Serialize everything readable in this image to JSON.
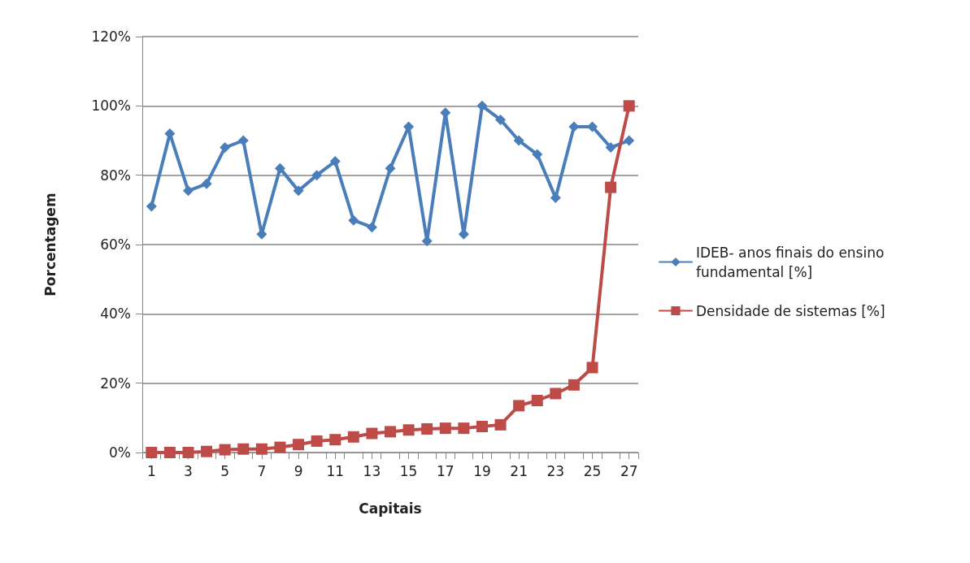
{
  "chart_data": {
    "type": "line",
    "xlabel": "Capitais",
    "ylabel": "Porcentagem",
    "x": [
      1,
      2,
      3,
      4,
      5,
      6,
      7,
      8,
      9,
      10,
      11,
      12,
      13,
      14,
      15,
      16,
      17,
      18,
      19,
      20,
      21,
      22,
      23,
      24,
      25,
      26,
      27
    ],
    "xlim": [
      0.5,
      27.5
    ],
    "xticks": [
      1,
      3,
      5,
      7,
      9,
      11,
      13,
      15,
      17,
      19,
      21,
      23,
      25,
      27,
      {
        "value": 0.5,
        "label": null
      },
      {
        "value": 1.5,
        "label": null
      },
      {
        "value": 2.5,
        "label": null
      },
      {
        "value": 3.5,
        "label": null
      },
      {
        "value": 4.5,
        "label": null
      },
      {
        "value": 5.5,
        "label": null
      },
      {
        "value": 6.5,
        "label": null
      },
      {
        "value": 7.5,
        "label": null
      },
      {
        "value": 8.5,
        "label": null
      },
      {
        "value": 9.5,
        "label": null
      },
      {
        "value": 10.5,
        "label": null
      },
      {
        "value": 11.5,
        "label": null
      },
      {
        "value": 12.5,
        "label": null
      },
      {
        "value": 13.5,
        "label": null
      },
      {
        "value": 14.5,
        "label": null
      },
      {
        "value": 15.5,
        "label": null
      },
      {
        "value": 16.5,
        "label": null
      },
      {
        "value": 17.5,
        "label": null
      },
      {
        "value": 18.5,
        "label": null
      },
      {
        "value": 19.5,
        "label": null
      },
      {
        "value": 20.5,
        "label": null
      },
      {
        "value": 21.5,
        "label": null
      },
      {
        "value": 22.5,
        "label": null
      },
      {
        "value": 23.5,
        "label": null
      },
      {
        "value": 24.5,
        "label": null
      },
      {
        "value": 25.5,
        "label": null
      },
      {
        "value": 26.5,
        "label": null
      },
      {
        "value": 27.5,
        "label": null
      }
    ],
    "series": [
      {
        "name": "IDEB- anos finais do ensino fundamental [%]",
        "color": "#4a7ebb",
        "marker": "diamond",
        "values": [
          71,
          92,
          75.5,
          77.5,
          88,
          90,
          63,
          82,
          75.5,
          80,
          84,
          67,
          65,
          82,
          94,
          61,
          98,
          63,
          100,
          96,
          90,
          86,
          73.5,
          94,
          94,
          88,
          90
        ]
      },
      {
        "name": "Densidade de sistemas [%]",
        "color": "#be4b48",
        "marker": "square",
        "values": [
          0,
          0,
          0,
          0.3,
          0.8,
          1,
          1,
          1.5,
          2.3,
          3.3,
          3.7,
          4.5,
          5.5,
          6,
          6.5,
          6.8,
          7,
          7,
          7.5,
          8,
          13.5,
          15,
          17,
          19.5,
          24.5,
          76.5,
          100
        ]
      }
    ],
    "ylim": [
      0,
      120
    ],
    "yticks": [
      {
        "value": 0,
        "label": "0%"
      },
      {
        "value": 20,
        "label": "20%"
      },
      {
        "value": 40,
        "label": "40%"
      },
      {
        "value": 60,
        "label": "60%"
      },
      {
        "value": 80,
        "label": "80%"
      },
      {
        "value": 100,
        "label": "100%"
      },
      {
        "value": 120,
        "label": "120%"
      }
    ],
    "grid": "y",
    "legend": "right"
  }
}
